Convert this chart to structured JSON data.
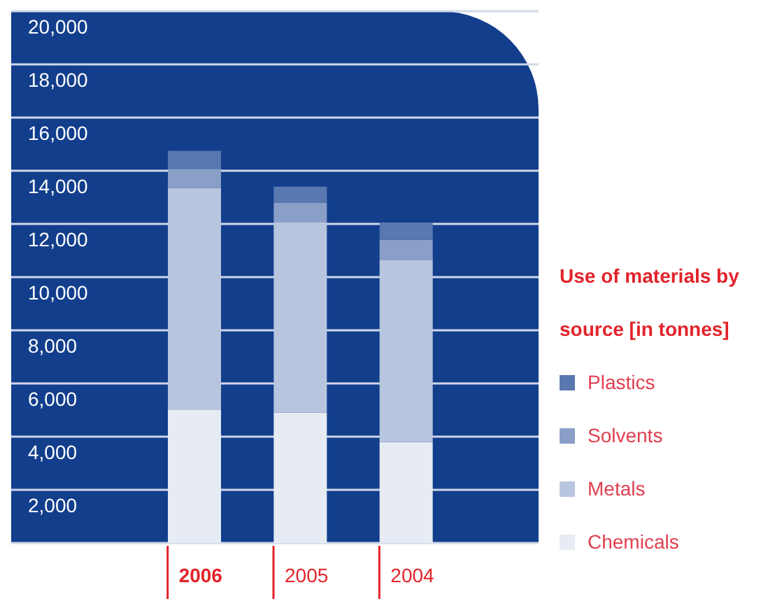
{
  "chart_data": {
    "type": "bar",
    "title": "Use of materials by source [in tonnes]",
    "categories": [
      "2006",
      "2005",
      "2004"
    ],
    "stacked": true,
    "series": [
      {
        "name": "Chemicals",
        "color": "#e6ebf4",
        "values": [
          5000,
          4900,
          3800
        ]
      },
      {
        "name": "Metals",
        "color": "#b8c5de",
        "values": [
          8350,
          7150,
          6850
        ]
      },
      {
        "name": "Solvents",
        "color": "#8a9fc8",
        "values": [
          700,
          750,
          750
        ]
      },
      {
        "name": "Plastics",
        "color": "#5a78b0",
        "values": [
          700,
          600,
          650
        ]
      }
    ],
    "ylim": [
      0,
      20000
    ],
    "yticks": [
      {
        "value": 2000,
        "label": "2,000"
      },
      {
        "value": 4000,
        "label": "4,000"
      },
      {
        "value": 6000,
        "label": "6,000"
      },
      {
        "value": 8000,
        "label": "8,000"
      },
      {
        "value": 10000,
        "label": "10,000"
      },
      {
        "value": 12000,
        "label": "12,000"
      },
      {
        "value": 14000,
        "label": "14,000"
      },
      {
        "value": 16000,
        "label": "16,000"
      },
      {
        "value": 18000,
        "label": "18,000"
      },
      {
        "value": 20000,
        "label": "20,000"
      }
    ],
    "grid": "y",
    "legend": "right"
  }
}
